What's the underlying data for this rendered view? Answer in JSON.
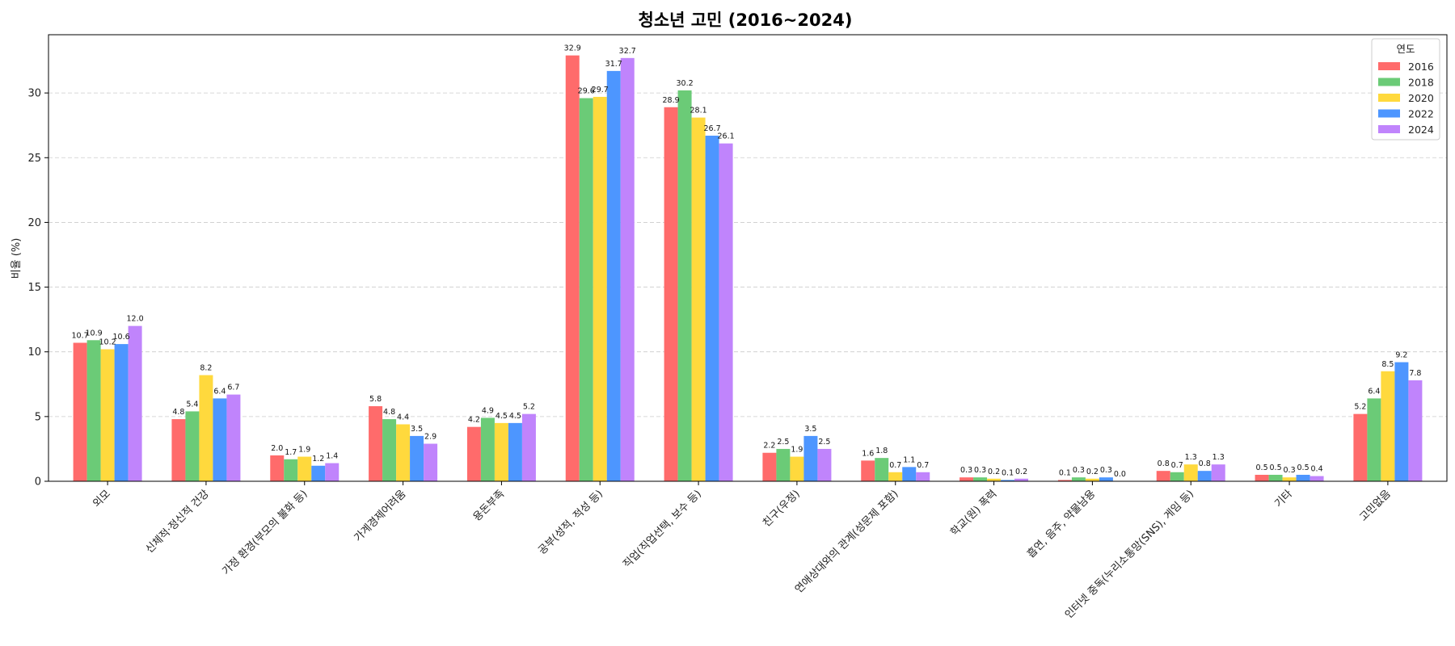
{
  "chart_data": {
    "type": "bar",
    "title": "청소년 고민 (2016~2024)",
    "xlabel": "",
    "ylabel": "비율 (%)",
    "ylim": [
      0,
      34.5
    ],
    "yticks": [
      0,
      5,
      10,
      15,
      20,
      25,
      30
    ],
    "grid": "y-dashed",
    "legend": {
      "title": "연도",
      "position": "top-right"
    },
    "categories": [
      "외모",
      "신체적·정신적 건강",
      "가정 환경(부모의 불화 등)",
      "가계경제어려움",
      "용돈부족",
      "공부(성적, 적성 등)",
      "직업(직업선택, 보수 등)",
      "친구(우정)",
      "연애상대와의 관계(성문제 포함)",
      "학교(원) 폭력",
      "흡연, 음주, 약물남용",
      "인터넷 중독(누리소통망(SNS), 게임 등)",
      "기타",
      "고민없음"
    ],
    "series": [
      {
        "name": "2016",
        "color": "#ff6b6b",
        "values": [
          10.7,
          4.8,
          2.0,
          5.8,
          4.2,
          32.9,
          28.9,
          2.2,
          1.6,
          0.3,
          0.1,
          0.8,
          0.5,
          5.2
        ]
      },
      {
        "name": "2018",
        "color": "#6bcb77",
        "values": [
          10.9,
          5.4,
          1.7,
          4.8,
          4.9,
          29.6,
          30.2,
          2.5,
          1.8,
          0.3,
          0.3,
          0.7,
          0.5,
          6.4
        ]
      },
      {
        "name": "2020",
        "color": "#ffd93d",
        "values": [
          10.2,
          8.2,
          1.9,
          4.4,
          4.5,
          29.7,
          28.1,
          1.9,
          0.7,
          0.2,
          0.2,
          1.3,
          0.3,
          8.5
        ]
      },
      {
        "name": "2022",
        "color": "#4d96ff",
        "values": [
          10.6,
          6.4,
          1.2,
          3.5,
          4.5,
          31.7,
          26.7,
          3.5,
          1.1,
          0.1,
          0.3,
          0.8,
          0.5,
          9.2
        ]
      },
      {
        "name": "2024",
        "color": "#c084fc",
        "values": [
          12.0,
          6.7,
          1.4,
          2.9,
          5.2,
          32.7,
          26.1,
          2.5,
          0.7,
          0.2,
          0.0,
          1.3,
          0.4,
          7.8
        ]
      }
    ]
  }
}
